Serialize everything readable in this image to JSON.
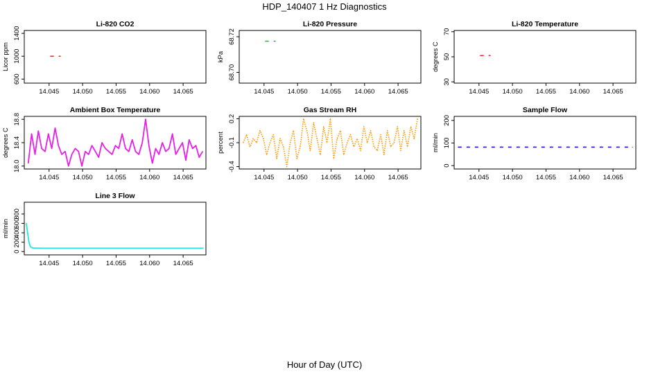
{
  "figure": {
    "title": "HDP_140407  1 Hz Diagnostics",
    "xlabel": "Hour of Day (UTC)"
  },
  "chart_data": [
    {
      "id": "co2",
      "type": "line",
      "title": "Li-820 CO2",
      "ylabel": "Licor ppm",
      "color": "#ff2d2d",
      "style": "dash",
      "xlim": [
        14.0413,
        14.0684
      ],
      "ylim": [
        530,
        1450
      ],
      "xticks": [
        14.045,
        14.05,
        14.055,
        14.06,
        14.065
      ],
      "xticklabels": [
        "14.045",
        "14.050",
        "14.055",
        "14.060",
        "14.065"
      ],
      "yticks": [
        600,
        1000,
        1400
      ],
      "yticklabels": [
        "600",
        "1000",
        "1400"
      ],
      "x": [
        14.0452,
        14.0467
      ],
      "y": [
        1000,
        1000
      ]
    },
    {
      "id": "pressure",
      "type": "line",
      "title": "Li-820 Pressure",
      "ylabel": "kPa",
      "color": "#22bb22",
      "style": "dash",
      "xlim": [
        14.0413,
        14.0684
      ],
      "ylim": [
        68.694,
        68.7235
      ],
      "xticks": [
        14.045,
        14.05,
        14.055,
        14.06,
        14.065
      ],
      "xticklabels": [
        "14.045",
        "14.050",
        "14.055",
        "14.060",
        "14.065"
      ],
      "yticks": [
        68.7,
        68.72
      ],
      "yticklabels": [
        "68.70",
        "68.72"
      ],
      "x": [
        14.0452,
        14.0467
      ],
      "y": [
        68.7175,
        68.7175
      ]
    },
    {
      "id": "temperature",
      "type": "line",
      "title": "Li-820 Temperature",
      "ylabel": "degrees C",
      "color": "#ff2d2d",
      "style": "dash",
      "xlim": [
        14.0413,
        14.0684
      ],
      "ylim": [
        29,
        71
      ],
      "xticks": [
        14.045,
        14.05,
        14.055,
        14.06,
        14.065
      ],
      "xticklabels": [
        "14.045",
        "14.050",
        "14.055",
        "14.060",
        "14.065"
      ],
      "yticks": [
        30,
        50,
        70
      ],
      "yticklabels": [
        "30",
        "50",
        "70"
      ],
      "x": [
        14.0452,
        14.0467
      ],
      "y": [
        51,
        51
      ]
    },
    {
      "id": "ambient",
      "type": "line",
      "title": "Ambient Box Temperature",
      "ylabel": "degrees C",
      "color": "#e81ee8",
      "style": "solid",
      "xlim": [
        14.0413,
        14.0684
      ],
      "ylim": [
        17.95,
        18.85
      ],
      "xticks": [
        14.045,
        14.05,
        14.055,
        14.06,
        14.065
      ],
      "xticklabels": [
        "14.045",
        "14.050",
        "14.055",
        "14.060",
        "14.065"
      ],
      "yticks": [
        18.0,
        18.4,
        18.8
      ],
      "yticklabels": [
        "18.0",
        "18.4",
        "18.8"
      ],
      "x": [
        14.0419,
        14.0424,
        14.0429,
        14.0434,
        14.0439,
        14.0444,
        14.0449,
        14.0454,
        14.0459,
        14.0464,
        14.0469,
        14.0474,
        14.0479,
        14.0484,
        14.0489,
        14.0494,
        14.0499,
        14.0504,
        14.0509,
        14.0514,
        14.0519,
        14.0524,
        14.0529,
        14.0534,
        14.0539,
        14.0544,
        14.0549,
        14.0554,
        14.0559,
        14.0564,
        14.0569,
        14.0574,
        14.0579,
        14.0584,
        14.0589,
        14.0594,
        14.0599,
        14.0604,
        14.0609,
        14.0614,
        14.0619,
        14.0624,
        14.0629,
        14.0634,
        14.0639,
        14.0644,
        14.0649,
        14.0654,
        14.0659,
        14.0664,
        14.0669,
        14.0674,
        14.0679
      ],
      "y": [
        18.05,
        18.55,
        18.2,
        18.6,
        18.3,
        18.25,
        18.55,
        18.3,
        18.65,
        18.35,
        18.2,
        18.25,
        18.0,
        18.2,
        18.3,
        18.25,
        18.0,
        18.25,
        18.2,
        18.35,
        18.25,
        18.15,
        18.4,
        18.3,
        18.25,
        18.2,
        18.35,
        18.3,
        18.55,
        18.3,
        18.25,
        18.45,
        18.25,
        18.2,
        18.4,
        18.8,
        18.35,
        18.05,
        18.3,
        18.2,
        18.4,
        18.25,
        18.3,
        18.55,
        18.2,
        18.3,
        18.4,
        18.1,
        18.45,
        18.3,
        18.35,
        18.15,
        18.25
      ]
    },
    {
      "id": "rh",
      "type": "line",
      "title": "Gas Stream RH",
      "ylabel": "percent",
      "color": "#ff9900",
      "style": "dotted",
      "xlim": [
        14.0413,
        14.0684
      ],
      "ylim": [
        -0.43,
        0.23
      ],
      "xticks": [
        14.045,
        14.05,
        14.055,
        14.06,
        14.065
      ],
      "xticklabels": [
        "14.045",
        "14.050",
        "14.055",
        "14.060",
        "14.065"
      ],
      "yticks": [
        -0.4,
        -0.1,
        0.2
      ],
      "yticklabels": [
        "-0.4",
        "-0.1",
        "0.2"
      ],
      "x": [
        14.0419,
        14.0424,
        14.0429,
        14.0434,
        14.0439,
        14.0444,
        14.0449,
        14.0454,
        14.0459,
        14.0464,
        14.0469,
        14.0474,
        14.0479,
        14.0484,
        14.0489,
        14.0494,
        14.0499,
        14.0504,
        14.0509,
        14.0514,
        14.0519,
        14.0524,
        14.0529,
        14.0534,
        14.0539,
        14.0544,
        14.0549,
        14.0554,
        14.0559,
        14.0564,
        14.0569,
        14.0574,
        14.0579,
        14.0584,
        14.0589,
        14.0594,
        14.0599,
        14.0604,
        14.0609,
        14.0614,
        14.0619,
        14.0624,
        14.0629,
        14.0634,
        14.0639,
        14.0644,
        14.0649,
        14.0654,
        14.0659,
        14.0664,
        14.0669,
        14.0674,
        14.0679
      ],
      "y": [
        -0.1,
        0.0,
        -0.15,
        -0.05,
        -0.1,
        0.05,
        -0.05,
        -0.25,
        -0.1,
        0.0,
        -0.3,
        -0.05,
        -0.15,
        -0.4,
        -0.1,
        0.05,
        -0.3,
        -0.15,
        0.2,
        0.05,
        -0.2,
        0.15,
        -0.05,
        -0.25,
        0.1,
        -0.1,
        0.2,
        -0.3,
        -0.05,
        0.05,
        -0.25,
        -0.1,
        0.0,
        -0.15,
        -0.05,
        -0.2,
        0.1,
        -0.1,
        0.05,
        -0.15,
        -0.2,
        0.0,
        -0.25,
        0.05,
        -0.15,
        -0.1,
        0.1,
        -0.2,
        0.05,
        -0.15,
        0.1,
        -0.05,
        0.2
      ]
    },
    {
      "id": "sample_flow",
      "type": "line",
      "title": "Sample Flow",
      "ylabel": "ml/min",
      "color": "#1a1ad0",
      "style": "dash",
      "xlim": [
        14.0413,
        14.0684
      ],
      "ylim": [
        -15,
        218
      ],
      "xticks": [
        14.045,
        14.05,
        14.055,
        14.06,
        14.065
      ],
      "xticklabels": [
        "14.045",
        "14.050",
        "14.055",
        "14.060",
        "14.065"
      ],
      "yticks": [
        0,
        100,
        200
      ],
      "yticklabels": [
        "0",
        "100",
        "200"
      ],
      "x": [
        14.0419,
        14.0679
      ],
      "y": [
        82,
        82
      ]
    },
    {
      "id": "line3_flow",
      "type": "line",
      "title": "Line 3 Flow",
      "ylabel": "ml/min",
      "color": "#22e6e6",
      "style": "solid",
      "xlim": [
        14.0413,
        14.0684
      ],
      "ylim": [
        -70,
        1050
      ],
      "xticks": [
        14.045,
        14.05,
        14.055,
        14.06,
        14.065
      ],
      "xticklabels": [
        "14.045",
        "14.050",
        "14.055",
        "14.060",
        "14.065"
      ],
      "yticks": [
        0,
        200,
        400,
        600,
        800
      ],
      "yticklabels": [
        "0",
        "200",
        "400",
        "600",
        "800"
      ],
      "x": [
        14.0416,
        14.0418,
        14.042,
        14.0422,
        14.0424,
        14.0428,
        14.044,
        14.05,
        14.056,
        14.062,
        14.068
      ],
      "y": [
        600,
        400,
        200,
        110,
        85,
        75,
        72,
        72,
        72,
        72,
        72
      ]
    }
  ]
}
